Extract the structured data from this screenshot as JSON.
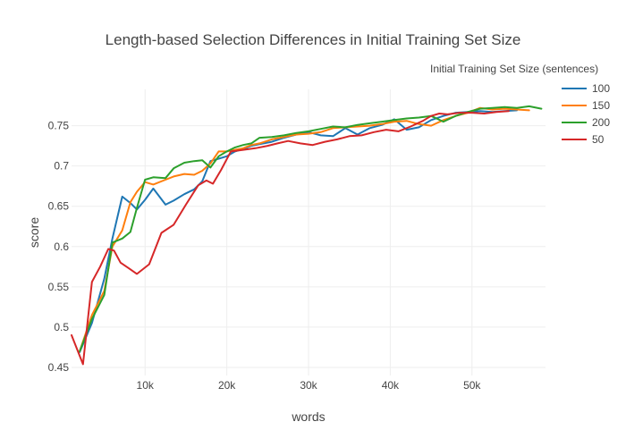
{
  "chart_data": {
    "type": "line",
    "title": "Length-based Selection Differences in Initial Training Set Size",
    "xlabel": "words",
    "ylabel": "score",
    "xlim": [
      1000,
      59000
    ],
    "ylim": [
      0.44,
      0.795
    ],
    "x_ticks": [
      10000,
      20000,
      30000,
      40000,
      50000
    ],
    "x_tick_labels": [
      "10k",
      "20k",
      "30k",
      "40k",
      "50k"
    ],
    "y_ticks": [
      0.45,
      0.5,
      0.55,
      0.6,
      0.65,
      0.7,
      0.75
    ],
    "y_tick_labels": [
      "0.45",
      "0.5",
      "0.55",
      "0.6",
      "0.65",
      "0.7",
      "0.75"
    ],
    "grid": true,
    "legend": {
      "title": "Initial Training Set Size (sentences)",
      "position": "top-right"
    },
    "series": [
      {
        "name": "100",
        "color": "#1f77b4",
        "x": [
          2000,
          3500,
          5000,
          6000,
          7200,
          8200,
          9000,
          10000,
          11000,
          12500,
          13500,
          14800,
          16000,
          17000,
          18000,
          19000,
          20000,
          21000,
          22000,
          23000,
          24000,
          25500,
          27000,
          28500,
          30000,
          31500,
          33000,
          34500,
          36000,
          37500,
          39000,
          40500,
          42000,
          43500,
          45000,
          46500,
          48000,
          49500,
          51000,
          52500,
          54000,
          55500
        ],
        "y": [
          0.469,
          0.505,
          0.56,
          0.61,
          0.662,
          0.654,
          0.646,
          0.658,
          0.672,
          0.652,
          0.657,
          0.665,
          0.671,
          0.681,
          0.706,
          0.709,
          0.712,
          0.718,
          0.721,
          0.725,
          0.727,
          0.73,
          0.735,
          0.739,
          0.742,
          0.738,
          0.737,
          0.747,
          0.739,
          0.747,
          0.751,
          0.758,
          0.745,
          0.748,
          0.757,
          0.762,
          0.766,
          0.767,
          0.768,
          0.767,
          0.768,
          0.769
        ]
      },
      {
        "name": "150",
        "color": "#ff7f0e",
        "x": [
          2000,
          3500,
          5000,
          6000,
          7200,
          8200,
          9000,
          10000,
          11000,
          12500,
          13500,
          14800,
          16000,
          17000,
          18000,
          19000,
          20000,
          21000,
          22000,
          23000,
          24000,
          25500,
          27000,
          28500,
          30000,
          31500,
          33000,
          34500,
          36000,
          37500,
          39000,
          40500,
          42000,
          43500,
          45000,
          46500,
          48000,
          49500,
          51000,
          52500,
          54000,
          55500,
          57000
        ],
        "y": [
          0.47,
          0.515,
          0.545,
          0.6,
          0.62,
          0.655,
          0.668,
          0.68,
          0.677,
          0.683,
          0.687,
          0.69,
          0.689,
          0.694,
          0.703,
          0.718,
          0.718,
          0.72,
          0.722,
          0.726,
          0.728,
          0.733,
          0.736,
          0.739,
          0.74,
          0.742,
          0.747,
          0.748,
          0.749,
          0.75,
          0.752,
          0.755,
          0.756,
          0.752,
          0.75,
          0.757,
          0.762,
          0.766,
          0.772,
          0.77,
          0.771,
          0.77,
          0.769
        ]
      },
      {
        "name": "200",
        "color": "#2ca02c",
        "x": [
          2000,
          3500,
          5000,
          6000,
          7200,
          8200,
          9000,
          10000,
          11000,
          12500,
          13500,
          14800,
          16000,
          17000,
          18000,
          19000,
          20000,
          21000,
          22000,
          23000,
          24000,
          25500,
          27000,
          28500,
          30000,
          31500,
          33000,
          34500,
          36000,
          37500,
          39000,
          40500,
          42000,
          43500,
          45000,
          46500,
          48000,
          49500,
          51000,
          52500,
          54000,
          55500,
          57000,
          58500
        ],
        "y": [
          0.47,
          0.51,
          0.54,
          0.605,
          0.61,
          0.618,
          0.648,
          0.683,
          0.686,
          0.685,
          0.697,
          0.704,
          0.706,
          0.707,
          0.698,
          0.712,
          0.718,
          0.723,
          0.726,
          0.728,
          0.735,
          0.736,
          0.738,
          0.741,
          0.743,
          0.746,
          0.749,
          0.748,
          0.751,
          0.753,
          0.755,
          0.757,
          0.759,
          0.76,
          0.762,
          0.755,
          0.762,
          0.767,
          0.771,
          0.772,
          0.773,
          0.772,
          0.774,
          0.771
        ]
      },
      {
        "name": "50",
        "color": "#d62728",
        "x": [
          1000,
          2400,
          3500,
          4500,
          5500,
          6200,
          7000,
          8000,
          9000,
          10500,
          12000,
          13500,
          15000,
          16500,
          17500,
          18300,
          19300,
          20500,
          22000,
          23500,
          25000,
          26200,
          27500,
          29000,
          30500,
          32000,
          33500,
          35000,
          36500,
          38000,
          39500,
          41000,
          42500,
          44000,
          45000,
          46000,
          47000,
          48500,
          50000,
          51500,
          53000,
          54500
        ],
        "y": [
          0.49,
          0.454,
          0.556,
          0.575,
          0.597,
          0.595,
          0.58,
          0.573,
          0.566,
          0.578,
          0.617,
          0.627,
          0.652,
          0.676,
          0.682,
          0.678,
          0.695,
          0.718,
          0.72,
          0.722,
          0.725,
          0.728,
          0.731,
          0.728,
          0.726,
          0.73,
          0.733,
          0.737,
          0.738,
          0.742,
          0.745,
          0.743,
          0.749,
          0.756,
          0.762,
          0.765,
          0.764,
          0.766,
          0.766,
          0.765,
          0.767,
          0.768
        ]
      }
    ]
  }
}
